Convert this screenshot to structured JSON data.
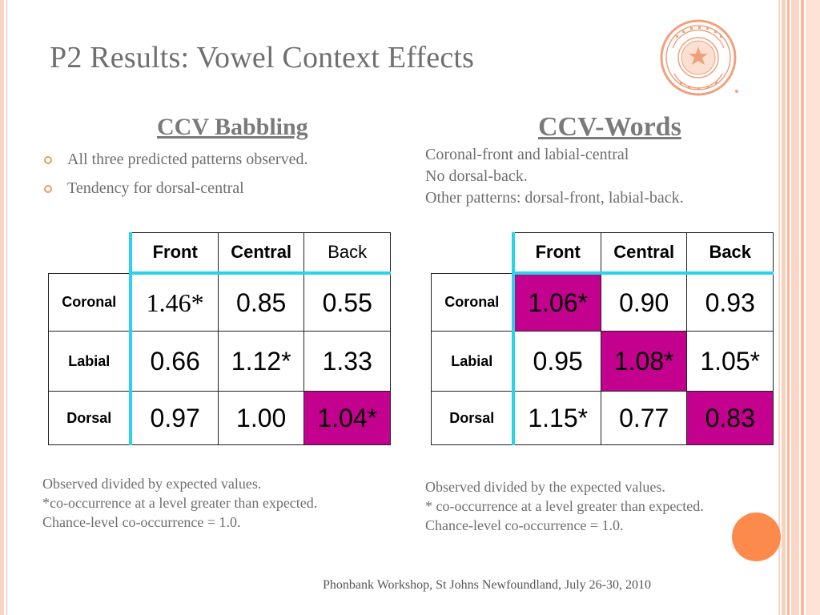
{
  "slide": {
    "title": "P2 Results: Vowel Context Effects",
    "footer": "Phonbank Workshop, St Johns Newfoundland, July 26-30, 2010",
    "logo": "university-seal"
  },
  "colors": {
    "highlight": "#c4008f",
    "table_accent": "#27d4ea",
    "bullet_accent": "#f39a5f",
    "circle": "#fd8a4d"
  },
  "left": {
    "heading": "CCV Babbling",
    "bullets": [
      "All three predicted patterns observed.",
      "Tendency for dorsal-central"
    ],
    "table": {
      "columns": [
        "Front",
        "Central",
        "Back"
      ],
      "rows": [
        {
          "label": "Coronal",
          "values": [
            "1.46*",
            "0.85",
            "0.55"
          ]
        },
        {
          "label": "Labial",
          "values": [
            "0.66",
            "1.12*",
            "1.33"
          ]
        },
        {
          "label": "Dorsal",
          "values": [
            "0.97",
            "1.00",
            "1.04*"
          ]
        }
      ],
      "highlighted": [
        "Dorsal-Back"
      ]
    },
    "notes": [
      "Observed divided by expected values.",
      "*co-occurrence at a level greater than expected.",
      "Chance-level co-occurrence = 1.0."
    ]
  },
  "right": {
    "heading": "CCV-Words",
    "lines": [
      "Coronal-front and labial-central",
      "No dorsal-back.",
      "Other patterns: dorsal-front, labial-back."
    ],
    "table": {
      "columns": [
        "Front",
        "Central",
        "Back"
      ],
      "rows": [
        {
          "label": "Coronal",
          "values": [
            "1.06*",
            "0.90",
            "0.93"
          ]
        },
        {
          "label": "Labial",
          "values": [
            "0.95",
            "1.08*",
            "1.05*"
          ]
        },
        {
          "label": "Dorsal",
          "values": [
            "1.15*",
            "0.77",
            "0.83"
          ]
        }
      ],
      "highlighted": [
        "Coronal-Front",
        "Labial-Central",
        "Dorsal-Back"
      ]
    },
    "notes": [
      "Observed divided by the expected values.",
      "* co-occurrence at a level greater than expected.",
      "Chance-level co-occurrence = 1.0."
    ]
  }
}
